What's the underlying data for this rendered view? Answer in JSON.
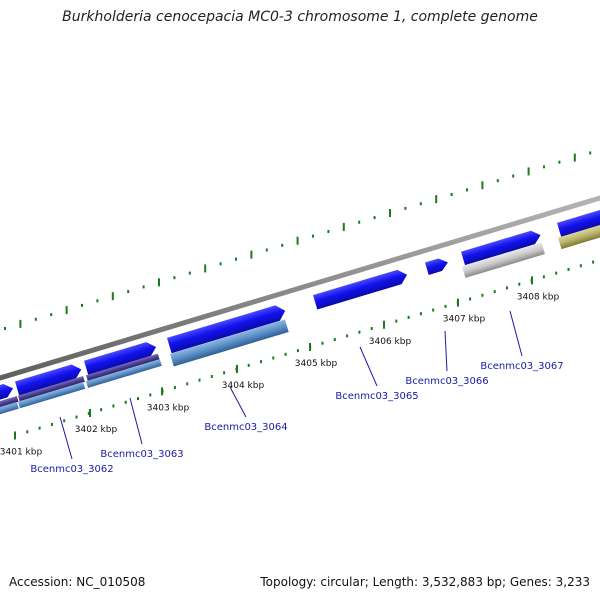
{
  "title": "Burkholderia cenocepacia MC0-3 chromosome 1, complete genome",
  "footer": {
    "accession": "Accession: NC_010508",
    "summary": "Topology: circular; Length: 3,532,883 bp; Genes: 3,233"
  },
  "colors": {
    "cds_forward": "#1010ee",
    "feature_lightblue": "#5b8fc7",
    "feature_purple": "#4b3f8f",
    "feature_gray": "#c8c8c8",
    "feature_olive": "#b9b46a",
    "backbone": "#8c8c8c",
    "tick": "#1b7a1b",
    "gene_label": "#1a1aa6"
  },
  "tick_labels": [
    "3401 kbp",
    "3402 kbp",
    "3403 kbp",
    "3404 kbp",
    "3405 kbp",
    "3406 kbp",
    "3407 kbp",
    "3408 kbp"
  ],
  "gene_labels": [
    "Bcenmc03_3062",
    "Bcenmc03_3063",
    "Bcenmc03_3064",
    "Bcenmc03_3065",
    "Bcenmc03_3066",
    "Bcenmc03_3067"
  ]
}
